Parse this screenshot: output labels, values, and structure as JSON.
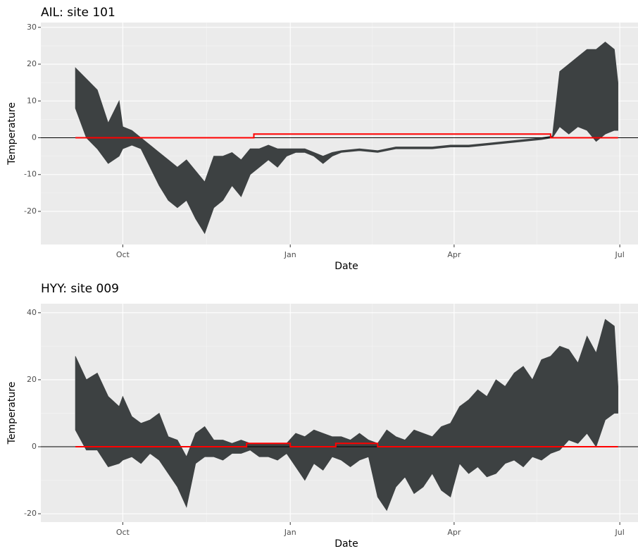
{
  "chart_data": [
    {
      "type": "ribbon",
      "title": "AIL: site 101",
      "xlabel": "Date",
      "ylabel": "Temperature",
      "x": [
        -26,
        -20,
        -14,
        -8,
        -2,
        0,
        5,
        10,
        15,
        20,
        25,
        30,
        35,
        40,
        45,
        50,
        55,
        60,
        65,
        70,
        75,
        80,
        85,
        90,
        95,
        100,
        105,
        110,
        115,
        120,
        130,
        140,
        150,
        160,
        170,
        180,
        190,
        200,
        210,
        220,
        230,
        236,
        240,
        245,
        250,
        255,
        260,
        265,
        270,
        272
      ],
      "low": [
        8,
        0,
        -3,
        -7,
        -5,
        -3,
        -2,
        -3,
        -8,
        -13,
        -17,
        -19,
        -17,
        -22,
        -26,
        -19,
        -17,
        -13,
        -16,
        -10,
        -8,
        -6,
        -8,
        -5,
        -4,
        -4,
        -5,
        -7,
        -5,
        -4,
        -3.5,
        -4,
        -3,
        -3,
        -3,
        -2.5,
        -2.5,
        -2,
        -1.5,
        -1,
        -0.5,
        0,
        3,
        1,
        3,
        2,
        -1,
        1,
        2,
        2
      ],
      "high": [
        19,
        16,
        13,
        4,
        10,
        3,
        2,
        0,
        -2,
        -4,
        -6,
        -8,
        -6,
        -9,
        -12,
        -5,
        -5,
        -4,
        -6,
        -3,
        -3,
        -2,
        -3,
        -3,
        -3,
        -3,
        -4,
        -5,
        -4,
        -3.5,
        -3,
        -3.5,
        -2.5,
        -2.5,
        -2.5,
        -2,
        -2,
        -1.5,
        -1,
        -0.5,
        0,
        0.5,
        18,
        20,
        22,
        24,
        24,
        26,
        24,
        15
      ],
      "color": "#3d4142",
      "step": {
        "x": [
          -26,
          72,
          72,
          235,
          235,
          272
        ],
        "values": [
          0,
          0,
          1,
          1,
          0,
          0
        ],
        "color": "#ff0000"
      },
      "hline": 0,
      "xlim": [
        -45,
        283
      ],
      "xticks": [
        {
          "value": 0,
          "label": "Oct"
        },
        {
          "value": 92,
          "label": "Jan"
        },
        {
          "value": 182,
          "label": "Apr"
        },
        {
          "value": 273,
          "label": "Jul"
        }
      ],
      "ylim": [
        -29,
        31.3
      ],
      "yticks": [
        -20,
        -10,
        0,
        10,
        20,
        30
      ],
      "grid": true
    },
    {
      "type": "ribbon",
      "title": "HYY: site 009",
      "xlabel": "Date",
      "ylabel": "Temperature",
      "x": [
        -26,
        -20,
        -14,
        -8,
        -2,
        0,
        5,
        10,
        15,
        20,
        25,
        30,
        35,
        40,
        45,
        50,
        55,
        60,
        65,
        70,
        75,
        80,
        85,
        90,
        95,
        100,
        105,
        110,
        115,
        120,
        125,
        130,
        135,
        140,
        145,
        150,
        155,
        160,
        165,
        170,
        175,
        180,
        185,
        190,
        195,
        200,
        205,
        210,
        215,
        220,
        225,
        230,
        235,
        240,
        245,
        250,
        255,
        260,
        265,
        270,
        272
      ],
      "low": [
        5,
        -1,
        -1,
        -6,
        -5,
        -4,
        -3,
        -5,
        -2,
        -4,
        -8,
        -12,
        -18,
        -5,
        -3,
        -3,
        -4,
        -2,
        -2,
        -1,
        -3,
        -3,
        -4,
        -2,
        -6,
        -10,
        -5,
        -7,
        -3,
        -4,
        -6,
        -4,
        -3,
        -15,
        -19,
        -12,
        -9,
        -14,
        -12,
        -8,
        -13,
        -15,
        -5,
        -8,
        -6,
        -9,
        -8,
        -5,
        -4,
        -6,
        -3,
        -4,
        -2,
        -1,
        2,
        1,
        4,
        0,
        8,
        10,
        10
      ],
      "high": [
        27,
        20,
        22,
        15,
        12,
        15,
        9,
        7,
        8,
        10,
        3,
        2,
        -3,
        4,
        6,
        2,
        2,
        1,
        2,
        1,
        1,
        1,
        1,
        1,
        4,
        3,
        5,
        4,
        3,
        3,
        2,
        4,
        2,
        1,
        5,
        3,
        2,
        5,
        4,
        3,
        6,
        7,
        12,
        14,
        17,
        15,
        20,
        18,
        22,
        24,
        20,
        26,
        27,
        30,
        29,
        25,
        33,
        28,
        38,
        36,
        18
      ],
      "color": "#3d4142",
      "step": {
        "x": [
          -26,
          68,
          68,
          92,
          92,
          117,
          117,
          140,
          140,
          272
        ],
        "values": [
          0,
          0,
          1,
          1,
          0,
          0,
          1,
          1,
          0,
          0
        ],
        "color": "#ff0000"
      },
      "hline": 0,
      "xlim": [
        -45,
        283
      ],
      "xticks": [
        {
          "value": 0,
          "label": "Oct"
        },
        {
          "value": 92,
          "label": "Jan"
        },
        {
          "value": 182,
          "label": "Apr"
        },
        {
          "value": 273,
          "label": "Jul"
        }
      ],
      "ylim": [
        -22.5,
        42.7
      ],
      "yticks": [
        -20,
        0,
        20,
        40
      ],
      "grid": true
    }
  ]
}
